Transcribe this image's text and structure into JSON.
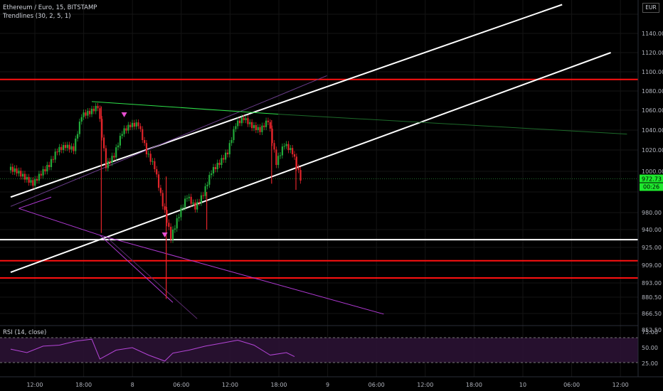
{
  "header": {
    "title": "Ethereum / Euro, 15, BITSTAMP",
    "study": "Trendlines (30, 2, 5, 1)",
    "currency": "EUR"
  },
  "rsi": {
    "label": "RSI (14, close)",
    "ticks": [
      "75.00",
      "50.00",
      "25.00"
    ]
  },
  "price_axis": {
    "ticks": [
      "1140.00",
      "1120.00",
      "1100.00",
      "1080.00",
      "1060.00",
      "1040.00",
      "1020.00",
      "1000.00",
      "980.00",
      "940.00",
      "925.00",
      "909.00",
      "893.00",
      "880.50",
      "866.50",
      "852.50"
    ],
    "last_price": "972.73",
    "countdown": "00:26"
  },
  "time_axis": {
    "ticks": [
      "12:00",
      "18:00",
      "8",
      "06:00",
      "12:00",
      "18:00",
      "9",
      "06:00",
      "12:00",
      "18:00",
      "10",
      "06:00",
      "12:00"
    ]
  },
  "colors": {
    "up": "#22ab3a",
    "down": "#e0242a",
    "support": "#ff1111",
    "channel": "#ffffff",
    "trend_green": "#2ee04a",
    "trend_purple": "#b23ad6",
    "marker": "#e64fd0",
    "price_label_bg": "#1ee82e",
    "rsi_line": "#b545d8",
    "rsi_band": "#2a1233"
  },
  "chart_data": {
    "type": "candlestick",
    "symbol": "Ethereum / Euro",
    "interval": "15",
    "exchange": "BITSTAMP",
    "y_axis_range": [
      845,
      1150
    ],
    "x_range": [
      "7 09:00",
      "10 13:00"
    ],
    "last_price": 972.73,
    "horizontal_levels": [
      {
        "price": 1072,
        "color": "red"
      },
      {
        "price": 916,
        "color": "white"
      },
      {
        "price": 897,
        "color": "red"
      },
      {
        "price": 884,
        "color": "red"
      }
    ],
    "close_series": [
      {
        "t": "7 09:00",
        "close": 980
      },
      {
        "t": "7 10:00",
        "close": 974
      },
      {
        "t": "7 11:00",
        "close": 968
      },
      {
        "t": "7 12:00",
        "close": 978
      },
      {
        "t": "7 13:00",
        "close": 986
      },
      {
        "t": "7 14:00",
        "close": 1000
      },
      {
        "t": "7 15:00",
        "close": 1004
      },
      {
        "t": "7 16:00",
        "close": 1001
      },
      {
        "t": "7 17:00",
        "close": 1035
      },
      {
        "t": "7 18:00",
        "close": 1038
      },
      {
        "t": "7 19:00",
        "close": 1044
      },
      {
        "t": "7 20:00",
        "close": 985
      },
      {
        "t": "7 21:00",
        "close": 995
      },
      {
        "t": "7 22:00",
        "close": 1018
      },
      {
        "t": "7 23:00",
        "close": 1025
      },
      {
        "t": "8 00:00",
        "close": 1026
      },
      {
        "t": "8 01:00",
        "close": 998
      },
      {
        "t": "8 02:00",
        "close": 984
      },
      {
        "t": "8 03:00",
        "close": 948
      },
      {
        "t": "8 04:00",
        "close": 918
      },
      {
        "t": "8 05:00",
        "close": 938
      },
      {
        "t": "8 06:00",
        "close": 956
      },
      {
        "t": "8 07:00",
        "close": 945
      },
      {
        "t": "8 08:00",
        "close": 958
      },
      {
        "t": "8 09:00",
        "close": 980
      },
      {
        "t": "8 10:00",
        "close": 988
      },
      {
        "t": "8 11:00",
        "close": 998
      },
      {
        "t": "8 12:00",
        "close": 1026
      },
      {
        "t": "8 13:00",
        "close": 1032
      },
      {
        "t": "8 14:00",
        "close": 1024
      },
      {
        "t": "8 15:00",
        "close": 1020
      },
      {
        "t": "8 16:00",
        "close": 1030
      },
      {
        "t": "8 17:00",
        "close": 988
      },
      {
        "t": "8 18:00",
        "close": 1006
      },
      {
        "t": "8 19:00",
        "close": 998
      },
      {
        "t": "8 20:00",
        "close": 973
      }
    ],
    "rsi_series": [
      {
        "t": "7 09:00",
        "v": 52
      },
      {
        "t": "7 11:00",
        "v": 45
      },
      {
        "t": "7 13:00",
        "v": 58
      },
      {
        "t": "7 15:00",
        "v": 60
      },
      {
        "t": "7 17:00",
        "v": 68
      },
      {
        "t": "7 19:00",
        "v": 72
      },
      {
        "t": "7 20:00",
        "v": 32
      },
      {
        "t": "7 22:00",
        "v": 50
      },
      {
        "t": "8 00:00",
        "v": 55
      },
      {
        "t": "8 02:00",
        "v": 40
      },
      {
        "t": "8 04:00",
        "v": 28
      },
      {
        "t": "8 05:00",
        "v": 44
      },
      {
        "t": "8 07:00",
        "v": 50
      },
      {
        "t": "8 09:00",
        "v": 58
      },
      {
        "t": "8 11:00",
        "v": 64
      },
      {
        "t": "8 13:00",
        "v": 70
      },
      {
        "t": "8 15:00",
        "v": 60
      },
      {
        "t": "8 17:00",
        "v": 40
      },
      {
        "t": "8 19:00",
        "v": 45
      },
      {
        "t": "8 20:00",
        "v": 37
      }
    ]
  }
}
